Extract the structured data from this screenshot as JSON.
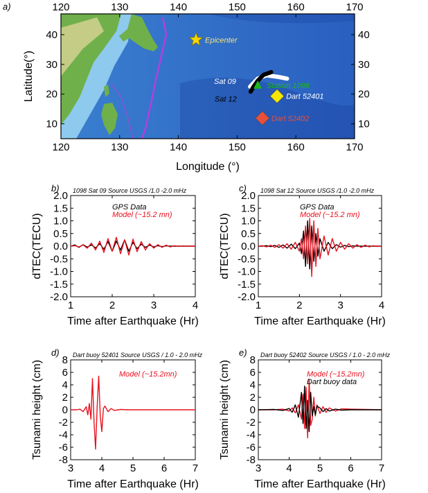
{
  "map": {
    "panel_label": "a)",
    "xlabel": "Longitude (°)",
    "ylabel": "Latitude(°)",
    "lon_ticks": [
      120,
      130,
      140,
      150,
      160,
      170
    ],
    "lat_ticks": [
      10,
      20,
      30,
      40
    ],
    "xlim": [
      120,
      170
    ],
    "ylim": [
      5,
      47
    ],
    "markers": [
      {
        "label": "Epicenter",
        "lon": 143,
        "lat": 38.3,
        "shape": "star",
        "color": "#f5d800",
        "text_color": "#f5e27a"
      },
      {
        "label": "Station 1098",
        "lon": 153.5,
        "lat": 23,
        "shape": "triangle",
        "color": "#1db51d",
        "text_color": "#1db51d"
      },
      {
        "label": "Dart 52401",
        "lon": 156.8,
        "lat": 19.3,
        "shape": "diamond",
        "color": "#f5e600",
        "text_color": "#ffffff"
      },
      {
        "label": "Dart 52402",
        "lon": 154.3,
        "lat": 11.9,
        "shape": "diamond",
        "color": "#e8503c",
        "text_color": "#e8503c"
      }
    ],
    "tracks": [
      {
        "label": "Sat 09",
        "color": "#ffffff",
        "points": [
          [
            152.2,
            22.5
          ],
          [
            153.5,
            25.2
          ],
          [
            155,
            26.3
          ],
          [
            157,
            25.8
          ],
          [
            158.5,
            25.2
          ]
        ]
      },
      {
        "label": "Sat 12",
        "color": "#000000",
        "points": [
          [
            152.3,
            20.8
          ],
          [
            152.8,
            22.5
          ],
          [
            153.5,
            24.5
          ],
          [
            154.5,
            26.5
          ],
          [
            155.8,
            27.4
          ]
        ]
      }
    ],
    "colors": {
      "ocean": "#2f6fc7",
      "deep": "#1a3f9e",
      "land": "#6fb04a",
      "shelf": "#8ec9ee",
      "trench": "#b040e0"
    }
  },
  "chart_data": [
    {
      "id": "b",
      "type": "line",
      "panel_label": "b)",
      "title": "1098 Sat 09 Source USGS /1.0 -2.0 mHz",
      "xlabel": "Time after Earthquake (Hr)",
      "ylabel": "dTEC(TECU)",
      "xlim": [
        1,
        4
      ],
      "ylim": [
        -2.0,
        2.0
      ],
      "xticks": [
        1,
        2,
        3,
        4
      ],
      "yticks": [
        "2.0",
        "1.5",
        "1.0",
        "0.5",
        "0.0",
        "-0.5",
        "-1.0",
        "-1.5",
        "-2.0"
      ],
      "legend": [
        {
          "text": "GPS Data",
          "color": "#000000"
        },
        {
          "text": "Model (~15.2 mn)",
          "color": "#e8101c"
        }
      ],
      "series": [
        {
          "name": "GPS Data",
          "color": "#000000",
          "x": [
            1.0,
            1.1,
            1.2,
            1.3,
            1.4,
            1.5,
            1.6,
            1.7,
            1.8,
            1.9,
            2.0,
            2.1,
            2.2,
            2.3,
            2.4,
            2.5,
            2.6,
            2.7,
            2.8,
            2.9,
            3.0,
            3.1,
            3.2,
            3.3,
            3.4,
            3.5,
            3.6,
            3.7,
            3.8,
            3.9,
            4.0
          ],
          "y": [
            0.0,
            0.05,
            -0.05,
            0.06,
            -0.04,
            0.05,
            -0.07,
            0.1,
            -0.12,
            0.18,
            -0.2,
            0.2,
            -0.15,
            0.25,
            -0.2,
            0.15,
            -0.1,
            0.08,
            -0.05,
            0.04,
            -0.03,
            0.02,
            -0.02,
            0.01,
            0.0,
            0.0,
            0.0,
            0.0,
            0.0,
            0.0,
            0.0
          ]
        },
        {
          "name": "Model (~15.2 mn)",
          "color": "#e8101c",
          "x": [
            1.0,
            1.1,
            1.2,
            1.3,
            1.4,
            1.5,
            1.6,
            1.7,
            1.8,
            1.9,
            2.0,
            2.1,
            2.2,
            2.3,
            2.4,
            2.5,
            2.6,
            2.7,
            2.8,
            2.9,
            3.0,
            3.1,
            3.2,
            3.3,
            3.4,
            3.5,
            3.6,
            3.7,
            3.8,
            3.9,
            4.0
          ],
          "y": [
            0.0,
            0.02,
            -0.03,
            0.05,
            -0.08,
            0.12,
            -0.15,
            0.2,
            -0.25,
            0.3,
            -0.2,
            0.35,
            -0.3,
            0.25,
            -0.35,
            0.28,
            -0.22,
            0.18,
            -0.15,
            0.1,
            -0.08,
            0.06,
            -0.05,
            0.04,
            -0.03,
            0.02,
            -0.01,
            0.01,
            0.0,
            0.0,
            0.0
          ]
        }
      ]
    },
    {
      "id": "c",
      "type": "line",
      "panel_label": "c)",
      "title": "1098 Sat 12 Source USGS /1.0 -2.0 mHz",
      "xlabel": "Time after Earthquake (Hr)",
      "ylabel": "dTEC(TECU)",
      "xlim": [
        1,
        4
      ],
      "ylim": [
        -2.0,
        2.0
      ],
      "xticks": [
        1,
        2,
        3,
        4
      ],
      "yticks": [
        "2.0",
        "1.5",
        "1.0",
        "0.5",
        "0.0",
        "-0.5",
        "-1.0",
        "-1.5",
        "-2.0"
      ],
      "legend": [
        {
          "text": "GPS Data",
          "color": "#000000"
        },
        {
          "text": "Model (~15.2 mn)",
          "color": "#e8101c"
        }
      ],
      "series": [
        {
          "name": "GPS Data",
          "color": "#000000",
          "x": [
            1.0,
            1.1,
            1.2,
            1.3,
            1.4,
            1.5,
            1.6,
            1.7,
            1.8,
            1.9,
            2.0,
            2.05,
            2.1,
            2.15,
            2.2,
            2.25,
            2.3,
            2.35,
            2.4,
            2.45,
            2.5,
            2.6,
            2.7,
            2.8,
            2.9,
            3.0,
            3.1,
            3.2,
            3.3,
            3.4,
            3.5,
            3.6,
            3.7,
            3.8,
            3.9,
            4.0
          ],
          "y": [
            0.0,
            0.0,
            0.02,
            -0.02,
            0.03,
            -0.05,
            0.05,
            -0.08,
            0.08,
            -0.1,
            0.12,
            -0.3,
            0.6,
            -0.8,
            1.0,
            -0.9,
            0.8,
            -0.6,
            0.5,
            -0.4,
            0.3,
            -0.2,
            0.15,
            -0.1,
            0.06,
            -0.04,
            0.03,
            -0.02,
            0.01,
            0.0,
            0.0,
            0.0,
            0.0,
            0.0,
            0.0,
            0.0
          ]
        },
        {
          "name": "Model (~15.2 mn)",
          "color": "#e8101c",
          "x": [
            1.0,
            1.1,
            1.2,
            1.3,
            1.4,
            1.5,
            1.6,
            1.7,
            1.8,
            1.9,
            2.0,
            2.05,
            2.1,
            2.15,
            2.2,
            2.25,
            2.3,
            2.35,
            2.4,
            2.45,
            2.5,
            2.6,
            2.7,
            2.8,
            2.9,
            3.0,
            3.1,
            3.2,
            3.3,
            3.4,
            3.5,
            3.6,
            3.7,
            3.8,
            3.9,
            4.0
          ],
          "y": [
            0.0,
            0.02,
            -0.03,
            0.04,
            -0.05,
            0.06,
            -0.08,
            0.1,
            -0.12,
            0.15,
            -0.2,
            0.3,
            -0.5,
            0.8,
            -0.7,
            1.1,
            -1.2,
            1.0,
            -0.8,
            0.7,
            -0.5,
            0.4,
            -0.35,
            0.3,
            -0.2,
            0.15,
            -0.12,
            0.1,
            -0.08,
            0.06,
            -0.05,
            0.04,
            -0.03,
            0.02,
            -0.01,
            0.0
          ]
        }
      ]
    },
    {
      "id": "d",
      "type": "line",
      "panel_label": "d)",
      "title": "Dart buoy 52401 Source USGS / 1.0 - 2.0 mHz",
      "xlabel": "Time after Earthquake (Hr)",
      "ylabel": "Tsunami height (cm)",
      "xlim": [
        3,
        7
      ],
      "ylim": [
        -8,
        8
      ],
      "xticks": [
        3,
        4,
        5,
        6,
        7
      ],
      "yticks": [
        "8",
        "6",
        "4",
        "2",
        "0",
        "-2",
        "-4",
        "-6",
        "-8"
      ],
      "legend": [
        {
          "text": "Model (~15.2mn)",
          "color": "#e8101c"
        }
      ],
      "series": [
        {
          "name": "Model (~15.2mn)",
          "color": "#e8101c",
          "x": [
            3.0,
            3.2,
            3.3,
            3.4,
            3.5,
            3.55,
            3.6,
            3.65,
            3.7,
            3.75,
            3.8,
            3.85,
            3.9,
            3.95,
            4.0,
            4.05,
            4.1,
            4.2,
            4.3,
            4.4,
            4.6,
            4.8,
            5.0,
            6.0,
            7.0
          ],
          "y": [
            0.0,
            0.0,
            0.1,
            -0.3,
            0.5,
            -0.8,
            1.0,
            -1.5,
            5.0,
            -2.0,
            -6.3,
            0.5,
            5.4,
            -1.0,
            -3.5,
            0.2,
            0.6,
            -0.3,
            0.2,
            -0.1,
            0.05,
            0.0,
            0.0,
            0.0,
            0.0
          ]
        }
      ]
    },
    {
      "id": "e",
      "type": "line",
      "panel_label": "e)",
      "title": "Dart buoy 52402 Source USGS / 1.0 - 2.0 mHz",
      "xlabel": "Time after Earthquake (Hr)",
      "ylabel": "Tsunami height (cm)",
      "xlim": [
        3,
        7
      ],
      "ylim": [
        -8,
        8
      ],
      "xticks": [
        3,
        4,
        5,
        6,
        7
      ],
      "yticks": [
        "8",
        "6",
        "4",
        "2",
        "0",
        "-2",
        "-4",
        "-6",
        "-8"
      ],
      "legend": [
        {
          "text": "Model (~15.2mn)",
          "color": "#e8101c"
        },
        {
          "text": "Dart buoy data",
          "color": "#000000"
        }
      ],
      "series": [
        {
          "name": "Model (~15.2mn)",
          "color": "#e8101c",
          "x": [
            3.0,
            3.5,
            3.8,
            4.0,
            4.1,
            4.2,
            4.3,
            4.4,
            4.45,
            4.5,
            4.55,
            4.6,
            4.65,
            4.7,
            4.75,
            4.8,
            4.85,
            4.9,
            5.0,
            5.1,
            5.2,
            5.3,
            5.5,
            5.7,
            6.0,
            6.5,
            7.0
          ],
          "y": [
            0.0,
            0.0,
            0.1,
            -0.2,
            0.3,
            -0.5,
            0.8,
            -1.5,
            2.5,
            -3.0,
            3.6,
            -4.5,
            4.8,
            -2.5,
            -1.5,
            2.0,
            -1.0,
            0.8,
            -0.6,
            0.5,
            -0.4,
            0.3,
            -0.2,
            0.15,
            0.1,
            0.05,
            0.0
          ]
        },
        {
          "name": "Dart buoy data",
          "color": "#000000",
          "x": [
            3.0,
            3.5,
            3.8,
            4.0,
            4.1,
            4.2,
            4.3,
            4.4,
            4.45,
            4.5,
            4.55,
            4.6,
            4.65,
            4.7,
            4.75,
            4.8,
            4.85,
            4.9,
            5.0,
            5.1,
            5.2,
            5.3,
            5.5,
            5.7,
            6.0,
            6.5,
            7.0
          ],
          "y": [
            0.0,
            0.05,
            -0.1,
            0.2,
            -0.4,
            0.8,
            -1.2,
            2.8,
            -2.2,
            3.8,
            -3.0,
            1.5,
            -3.5,
            2.8,
            -1.0,
            0.5,
            -0.8,
            0.6,
            0.3,
            -0.3,
            0.2,
            -0.2,
            0.1,
            -0.05,
            0.0,
            0.0,
            0.0
          ]
        }
      ]
    }
  ]
}
